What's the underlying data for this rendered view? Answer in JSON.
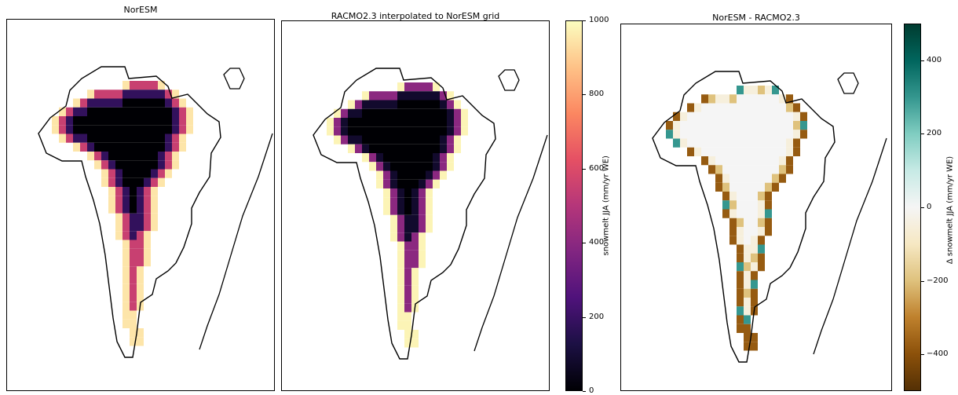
{
  "chart_data": [
    {
      "type": "heatmap",
      "title": "NorESM",
      "colormap": "magma",
      "vmin": 0,
      "vmax": 1000,
      "description_of_values": "snowmelt JJA over Greenland; interior ~0, margins up to ~1000"
    },
    {
      "type": "heatmap",
      "title": "RACMO2.3 interpolated to NorESM grid",
      "colormap": "magma",
      "vmin": 0,
      "vmax": 1000,
      "colorbar": {
        "label": "snowmelt JJA (mm/yr WE)",
        "ticks": [
          "0",
          "200",
          "400",
          "600",
          "800",
          "1000"
        ],
        "range": [
          0,
          1000
        ]
      }
    },
    {
      "type": "heatmap",
      "title": "NorESM - RACMO2.3",
      "colormap": "BrBG",
      "vmin": -500,
      "vmax": 500,
      "colorbar": {
        "label": "Δ snowmelt JJA (mm/yr WE)",
        "ticks": [
          "400",
          "200",
          "0",
          "−200",
          "−400"
        ],
        "range": [
          -500,
          500
        ]
      }
    }
  ],
  "colors": {
    "magma": [
      "#000004",
      "#1c1044",
      "#4f127b",
      "#812581",
      "#b5367a",
      "#e55064",
      "#fb8761",
      "#fec287",
      "#fcfdbf"
    ],
    "brbg": [
      "#543005",
      "#8c510a",
      "#bf812d",
      "#dfc27d",
      "#f6e8c3",
      "#f5f5f5",
      "#c7eae5",
      "#80cdc1",
      "#35978f",
      "#01665e",
      "#003c30"
    ]
  }
}
